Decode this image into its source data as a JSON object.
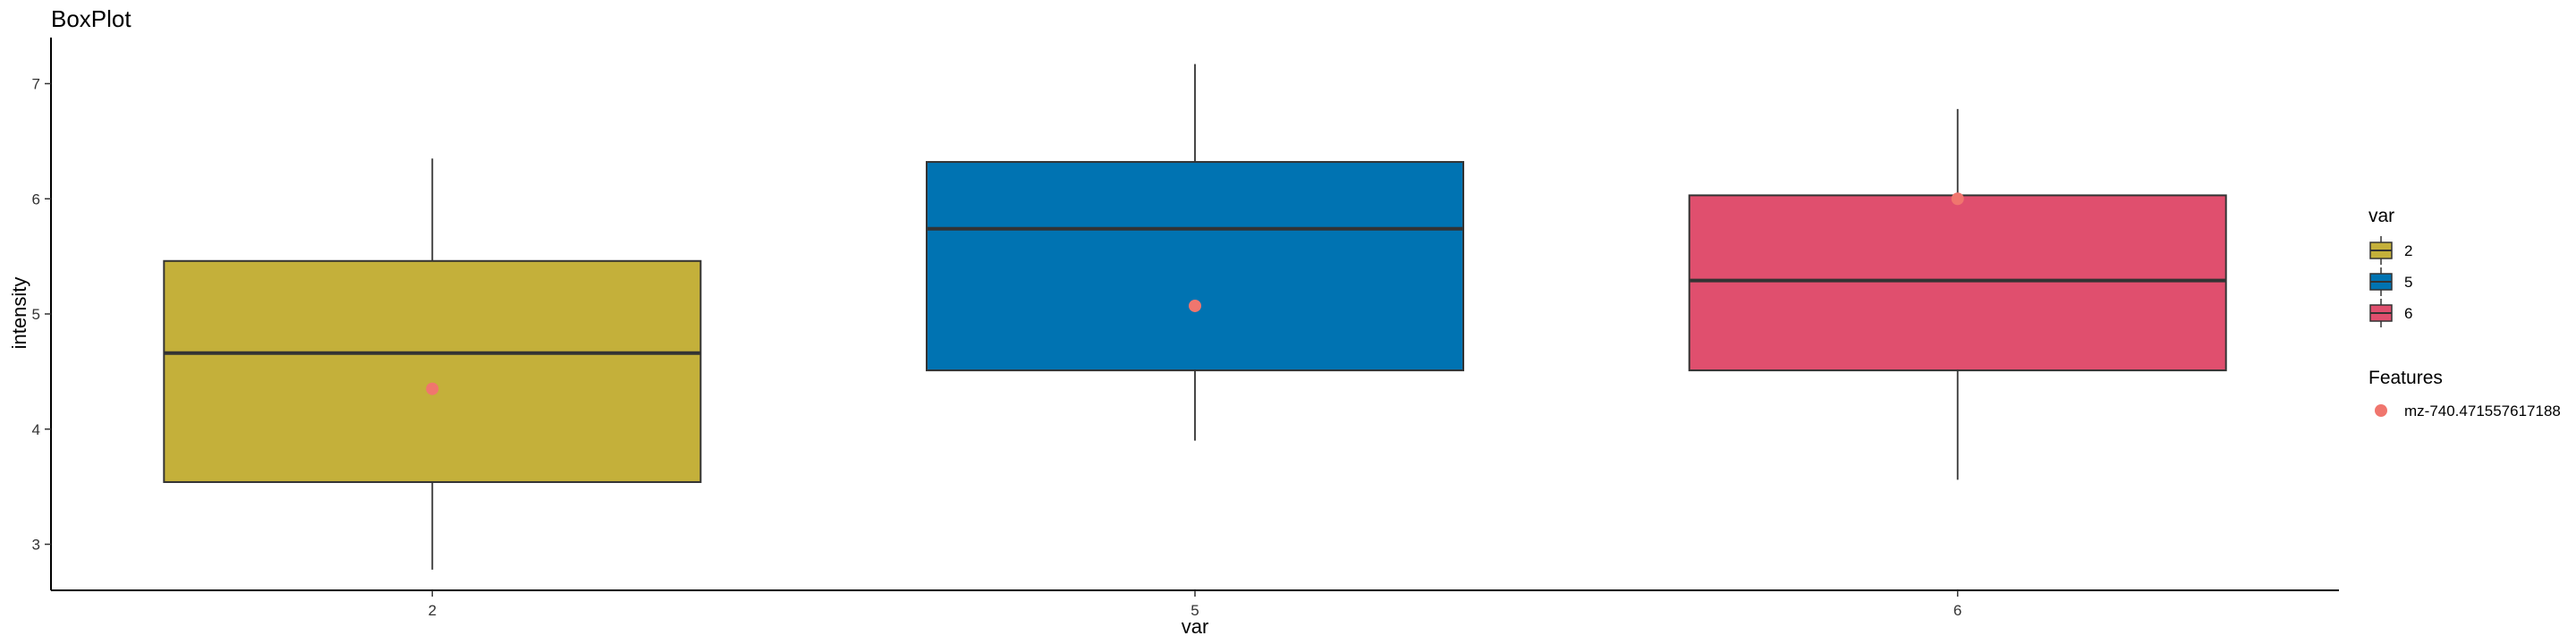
{
  "chart_data": {
    "type": "box",
    "title": "BoxPlot",
    "xlabel": "var",
    "ylabel": "intensity",
    "categories": [
      "2",
      "5",
      "6"
    ],
    "ylim": [
      2.6,
      7.4
    ],
    "yticks": [
      "3",
      "4",
      "5",
      "6",
      "7"
    ],
    "boxes": [
      {
        "category": "2",
        "whisker_low": 2.78,
        "q1": 3.54,
        "median": 4.66,
        "q3": 5.46,
        "whisker_high": 6.35,
        "color": "#C4B03A"
      },
      {
        "category": "5",
        "whisker_low": 3.9,
        "q1": 4.51,
        "median": 5.74,
        "q3": 6.32,
        "whisker_high": 7.17,
        "color": "#0073B2"
      },
      {
        "category": "6",
        "whisker_low": 3.56,
        "q1": 4.51,
        "median": 5.29,
        "q3": 6.03,
        "whisker_high": 6.78,
        "color": "#E04F6E"
      }
    ],
    "points": [
      {
        "category": "2",
        "y": 4.35
      },
      {
        "category": "5",
        "y": 5.07
      },
      {
        "category": "6",
        "y": 6.0
      }
    ],
    "point_color": "#F0766E",
    "legend": {
      "fill_title": "var",
      "fill_items": [
        "2",
        "5",
        "6"
      ],
      "points_title": "Features",
      "points_items": [
        "mz-740.471557617188"
      ]
    },
    "grid": false
  }
}
